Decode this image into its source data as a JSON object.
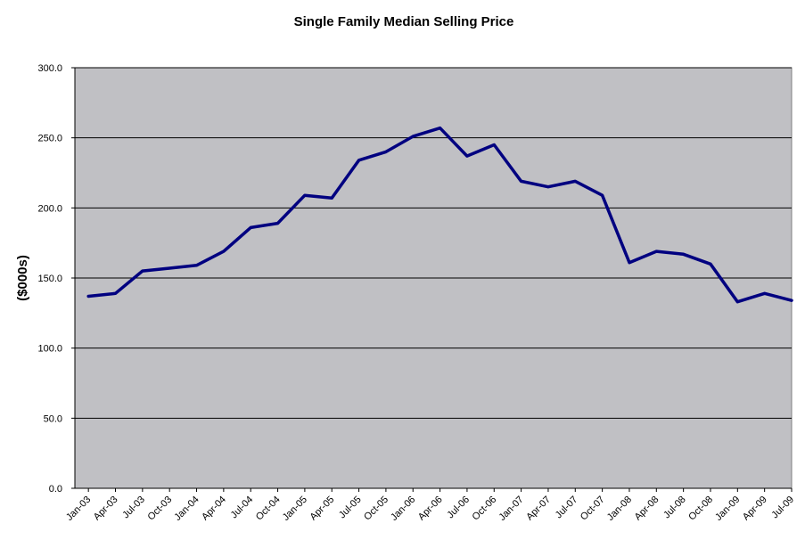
{
  "colors": {
    "plot_background": "#c0c0c4",
    "gridline": "#000000",
    "series_line": "#000080"
  },
  "chart_data": {
    "type": "line",
    "title": "Single Family Median Selling Price",
    "xlabel": "",
    "ylabel": "($000s)",
    "ylim": [
      0,
      300
    ],
    "y_ticks": [
      "0.0",
      "50.0",
      "100.0",
      "150.0",
      "200.0",
      "250.0",
      "300.0"
    ],
    "grid": true,
    "legend": "none",
    "categories": [
      "Jan-03",
      "Apr-03",
      "Jul-03",
      "Oct-03",
      "Jan-04",
      "Apr-04",
      "Jul-04",
      "Oct-04",
      "Jan-05",
      "Apr-05",
      "Jul-05",
      "Oct-05",
      "Jan-06",
      "Apr-06",
      "Jul-06",
      "Oct-06",
      "Jan-07",
      "Apr-07",
      "Jul-07",
      "Oct-07",
      "Jan-08",
      "Apr-08",
      "Jul-08",
      "Oct-08",
      "Jan-09",
      "Apr-09",
      "Jul-09"
    ],
    "series": [
      {
        "values": [
          137,
          139,
          155,
          157,
          159,
          169,
          186,
          189,
          209,
          207,
          234,
          240,
          251,
          257,
          237,
          245,
          219,
          215,
          219,
          209,
          161,
          169,
          167,
          160,
          133,
          139,
          134
        ]
      }
    ]
  }
}
